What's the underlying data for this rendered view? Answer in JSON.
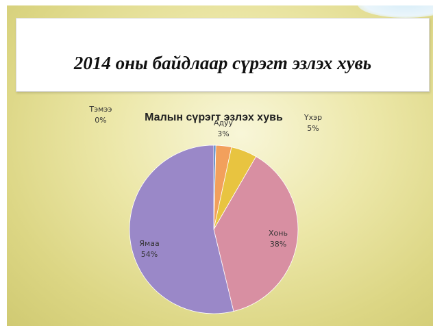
{
  "slide": {
    "title": "2014 оны байдлаар сүрэгт эзлэх хувь"
  },
  "chart_data": {
    "type": "pie",
    "title": "Малын сүрэгт эзлэх хувь",
    "categories": [
      "Тэмээ",
      "Адуу",
      "Үхэр",
      "Хонь",
      "Ямаа"
    ],
    "values": [
      0.4,
      3,
      5,
      38,
      54
    ],
    "labels": [
      "0%",
      "3%",
      "5%",
      "38%",
      "54%"
    ],
    "colors": [
      "#4a7fbf",
      "#f2a05c",
      "#e8c440",
      "#d88fa2",
      "#9a88c8"
    ],
    "legend": "none"
  }
}
